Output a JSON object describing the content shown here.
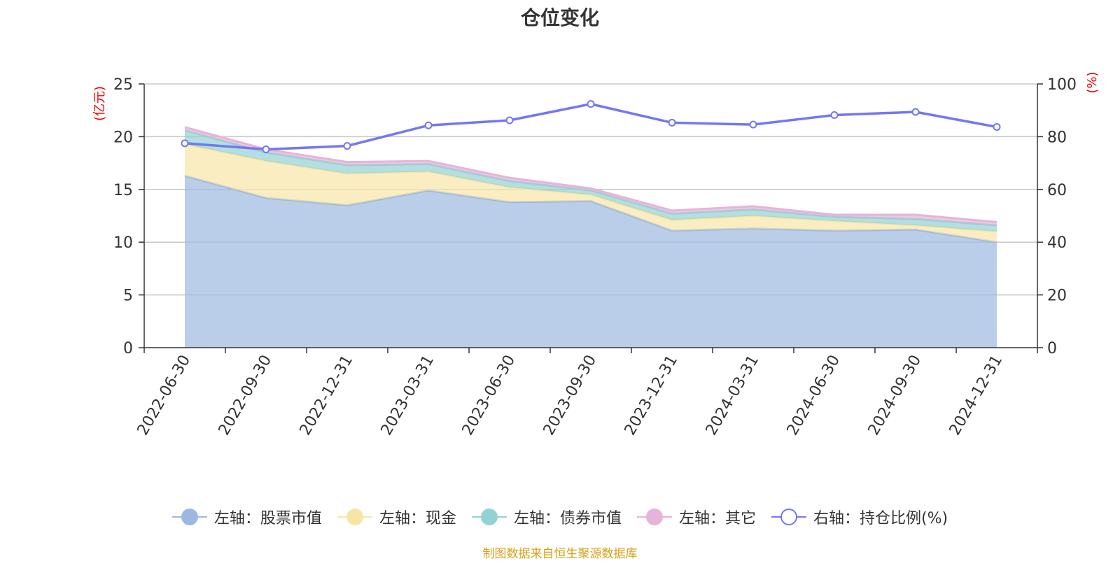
{
  "chart_data": {
    "type": "area",
    "title": "仓位变化",
    "categories": [
      "2022-06-30",
      "2022-09-30",
      "2022-12-31",
      "2023-03-31",
      "2023-06-30",
      "2023-09-30",
      "2023-12-31",
      "2024-03-31",
      "2024-06-30",
      "2024-09-30",
      "2024-12-31"
    ],
    "left_axis": {
      "unit": "(亿元)",
      "ylim": [
        0,
        25
      ],
      "ticks": [
        "0",
        "5",
        "10",
        "15",
        "20",
        "25"
      ]
    },
    "right_axis": {
      "unit": "(%)",
      "ylim": [
        0,
        100
      ],
      "ticks": [
        "0",
        "20",
        "40",
        "60",
        "80",
        "100"
      ]
    },
    "stacked_series": [
      {
        "name": "左轴：股票市值",
        "color": "#9db8e0",
        "values": [
          16.3,
          14.2,
          13.5,
          14.9,
          13.8,
          13.9,
          11.1,
          11.3,
          11.1,
          11.2,
          10.0
        ]
      },
      {
        "name": "左轴：现金",
        "color": "#f8e5a6",
        "values": [
          3.0,
          3.5,
          3.0,
          1.8,
          1.4,
          0.6,
          1.0,
          1.2,
          0.9,
          0.4,
          1.0
        ]
      },
      {
        "name": "左轴：债券市值",
        "color": "#93d2d4",
        "values": [
          1.3,
          0.8,
          0.8,
          0.7,
          0.6,
          0.4,
          0.6,
          0.6,
          0.4,
          0.6,
          0.6
        ]
      },
      {
        "name": "左轴：其它",
        "color": "#e6b4d8",
        "values": [
          0.3,
          0.3,
          0.3,
          0.3,
          0.3,
          0.2,
          0.3,
          0.3,
          0.2,
          0.4,
          0.3
        ]
      }
    ],
    "line_series": {
      "name": "右轴：持仓比例(%)",
      "color": "#7477f2",
      "values": [
        77.5,
        75.2,
        76.5,
        84.3,
        86.2,
        92.4,
        85.3,
        84.6,
        88.2,
        89.4,
        83.7
      ]
    },
    "grid": true,
    "legend_position": "bottom"
  },
  "legend": [
    {
      "label": "左轴：股票市值",
      "color": "#9db8e0",
      "hollow": false
    },
    {
      "label": "左轴：现金",
      "color": "#f8e5a6",
      "hollow": false
    },
    {
      "label": "左轴：债券市值",
      "color": "#93d2d4",
      "hollow": false
    },
    {
      "label": "左轴：其它",
      "color": "#e6b4d8",
      "hollow": false
    },
    {
      "label": "右轴：持仓比例(%)",
      "color": "#7477f2",
      "hollow": true
    }
  ],
  "source_note": "制图数据来自恒生聚源数据库"
}
